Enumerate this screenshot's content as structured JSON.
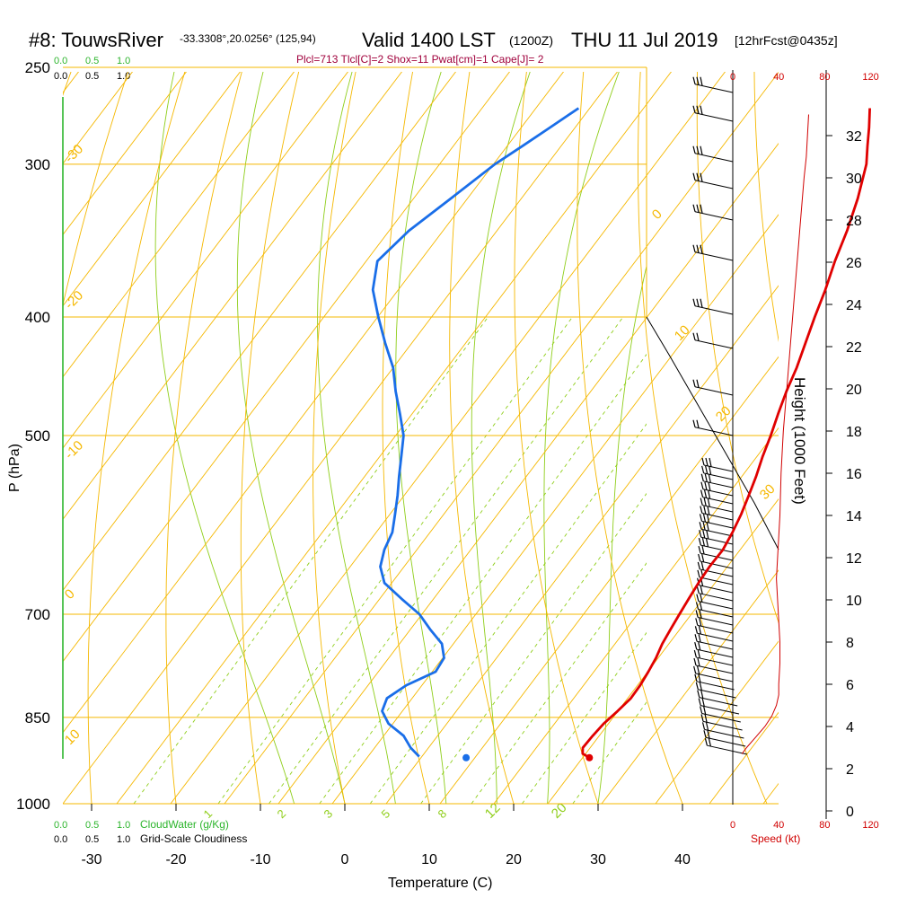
{
  "header": {
    "site": "#8: TouwsRiver",
    "coords": "-33.3308°,20.0256° (125,94)",
    "valid": "Valid 1400 LST",
    "zulu": "(1200Z)",
    "date": "THU 11 Jul 2019",
    "forecast": "[12hrFcst@0435z]",
    "indices": "Plcl=713 Tlcl[C]=2 Shox=11 Pwat[cm]=1 Cape[J]= 2"
  },
  "cloud_scale": {
    "top_green": [
      "0.0",
      "0.5",
      "1.0"
    ],
    "top_black": [
      "0.0",
      "0.5",
      "1.0"
    ],
    "bottom_green": [
      "0.0",
      "0.5",
      "1.0"
    ],
    "bottom_green_label": "CloudWater (g/Kg)",
    "bottom_black": [
      "0.0",
      "0.5",
      "1.0"
    ],
    "bottom_black_label": "Grid-Scale Cloudiness"
  },
  "colors": {
    "isobar": "#f5b800",
    "dry_adiabat": "#f5b800",
    "moist_adiabat": "#8fce1a",
    "mixing_ratio": "#8fce1a",
    "temperature": "#e00000",
    "dewpoint": "#1a6ee8",
    "cloud": "#2db52d",
    "speed": "#d00000",
    "index_text": "#a0003c"
  },
  "chart_data": {
    "type": "skew-t",
    "xlabel": "Temperature (C)",
    "ylabel": "P (hPa)",
    "y2label": "Height (1000 Feet)",
    "speed_label": "Speed (kt)",
    "xlim": [
      -34,
      34
    ],
    "x_ticks": [
      -30,
      -20,
      -10,
      0,
      10,
      20,
      30,
      40
    ],
    "pressure_range": [
      1000,
      250
    ],
    "pressure_ticks": [
      250,
      300,
      400,
      500,
      700,
      850,
      1000
    ],
    "height_ticks": [
      0,
      2,
      4,
      6,
      8,
      10,
      12,
      14,
      16,
      18,
      20,
      22,
      24,
      26,
      28,
      30,
      32
    ],
    "speed_ticks_top": [
      0,
      40,
      80,
      120
    ],
    "speed_ticks_bottom": [
      0,
      40,
      80,
      120
    ],
    "dry_adiabat_labels": [
      -30,
      -20,
      -10,
      0,
      10,
      0,
      10,
      20,
      30
    ],
    "moist_adiabat_labels": [
      12,
      20
    ],
    "mixing_ratio_labels": [
      1,
      2,
      3,
      5,
      8
    ],
    "temperature": {
      "pressure": [
        917,
        910,
        900,
        880,
        860,
        840,
        820,
        800,
        780,
        760,
        740,
        720,
        700,
        680,
        660,
        640,
        620,
        600,
        580,
        560,
        540,
        520,
        500,
        480,
        460,
        440,
        420,
        400,
        380,
        360,
        340,
        320,
        300,
        290,
        280,
        270
      ],
      "values": [
        23.3,
        22.0,
        21.3,
        21.0,
        20.8,
        20.9,
        20.9,
        20.4,
        19.7,
        18.9,
        17.9,
        17.1,
        16.3,
        15.5,
        14.7,
        14.0,
        13.5,
        12.5,
        11.3,
        9.9,
        8.4,
        6.7,
        5.1,
        3.3,
        1.5,
        -0.2,
        -2.2,
        -4.3,
        -6.4,
        -8.8,
        -11.1,
        -13.8,
        -17.0,
        -19.1,
        -21.2,
        -23.5
      ]
    },
    "dewpoint": {
      "pressure": [
        915,
        900,
        880,
        860,
        840,
        820,
        800,
        780,
        760,
        740,
        720,
        700,
        680,
        660,
        640,
        620,
        600,
        580,
        560,
        540,
        520,
        500,
        480,
        460,
        440,
        420,
        400,
        380,
        360,
        340,
        320,
        300,
        290,
        280,
        270
      ],
      "values": [
        3.0,
        0.9,
        -1.4,
        -4.7,
        -7.0,
        -8.0,
        -7.3,
        -5.5,
        -6.2,
        -8.2,
        -11.4,
        -14.5,
        -18.5,
        -22.5,
        -25.0,
        -26.6,
        -27.8,
        -29.7,
        -31.7,
        -33.9,
        -36.1,
        -38.4,
        -41.5,
        -44.8,
        -48.0,
        -52.0,
        -56.0,
        -60.0,
        -63.0,
        -63.0,
        -62.0,
        -61.0,
        -60.0,
        -59.0,
        -58.0
      ]
    },
    "surface_markers": {
      "temperature_c": 23.3,
      "dewpoint_c": 8.7,
      "pressure_hpa": 917
    },
    "wind_speed_kt": {
      "height_kft": [
        2.7,
        3.0,
        3.5,
        4.0,
        4.5,
        5.0,
        5.5,
        6.0,
        7.0,
        8.0,
        9.0,
        10.0,
        11.0,
        12.0,
        13.0,
        14.0,
        16.0,
        18.0,
        20.0,
        22.0,
        24.0,
        26.0,
        28.0,
        30.0,
        31.0,
        32.0,
        33.0
      ],
      "values": [
        8,
        12,
        20,
        28,
        34,
        38,
        40,
        40,
        41,
        41,
        40,
        39,
        38,
        39,
        40,
        41,
        42,
        44,
        47,
        50,
        53,
        56,
        59,
        62,
        64,
        65,
        66
      ]
    }
  }
}
